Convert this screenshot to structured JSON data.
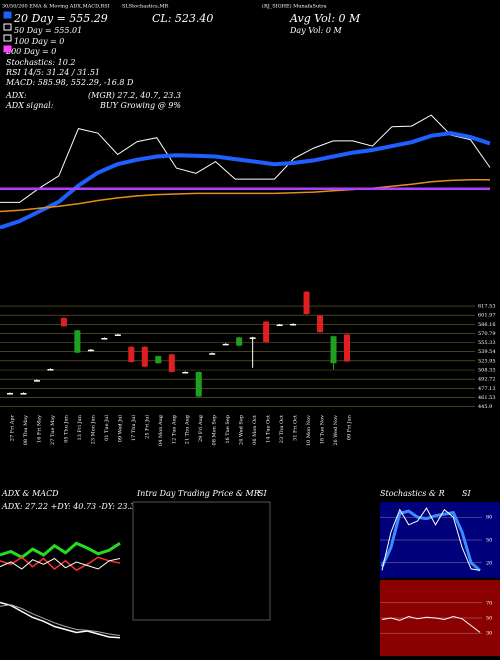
{
  "chart_data": [
    {
      "type": "line",
      "title": "30/50/200  EMA & Moving ADX,MACD,RSI",
      "subtitle": "SLStochastics,MR",
      "source": "(RJ_SIGHE) MunafaSutra",
      "annotations": [
        "20 Day = 555.29",
        "50 Day = 555.01",
        "100 Day = 0",
        "200 Day = 0",
        "Stochastics: 10.2",
        "RSI 14/5: 31.24 / 31.51",
        "MACD: 585.98, 552.29, -16.8 D",
        "ADX:",
        "(MGR) 27.2, 40.7, 23.3",
        "ADX signal:",
        "BUY Growing @ 9%",
        "CL: 523.40",
        "Avg Vol: 0  M",
        "Day Vol: 0  M"
      ],
      "ylim": [
        380,
        720
      ],
      "series": [
        {
          "color": "#ffffff",
          "values": [
            469,
            469,
            491,
            510,
            583,
            576,
            543,
            563,
            569,
            522,
            514,
            532,
            505,
            505,
            505,
            537,
            553,
            564,
            564,
            556,
            586,
            587,
            604,
            573,
            566,
            523
          ]
        },
        {
          "color": "#1f5fff",
          "values": [
            430,
            440,
            455,
            470,
            495,
            515,
            528,
            535,
            540,
            542,
            541,
            540,
            536,
            532,
            528,
            530,
            534,
            540,
            546,
            550,
            556,
            562,
            572,
            576,
            570,
            560
          ]
        },
        {
          "color": "#e0901a",
          "values": [
            455,
            457,
            460,
            463,
            467,
            472,
            476,
            479,
            481,
            482,
            483,
            483,
            483,
            483,
            483,
            484,
            485,
            487,
            489,
            491,
            494,
            497,
            501,
            503,
            504,
            504
          ]
        },
        {
          "color": "#b040ff",
          "values": [
            490,
            490,
            490,
            490,
            490,
            490,
            490,
            490,
            490,
            490,
            490,
            490,
            490,
            490,
            490,
            490,
            490,
            490,
            490,
            490,
            490,
            490,
            490,
            490,
            490,
            490
          ]
        }
      ]
    },
    {
      "type": "candlestick",
      "categories": [
        "27 Fri Apr",
        "08 Thu May",
        "16 Fri May",
        "27 Tue May",
        "05 Thu Jun",
        "13 Fri Jun",
        "23 Mon Jun",
        "01 Tue Jul",
        "09 Wed Jul",
        "17 Thu Jul",
        "25 Fri Jul",
        "04 Mon Aug",
        "12 Tue Aug",
        "21 Thu Aug",
        "29 Fri Aug",
        "08 Mon Sep",
        "16 Tue Sep",
        "24 Wed Sep",
        "06 Mon Oct",
        "14 Tue Oct",
        "23 Thu Oct",
        "31 Fri Oct",
        "10 Mon Nov",
        "18 Tue Nov",
        "26 Wed Nov",
        "09 Fri Jan"
      ],
      "open": [
        469,
        469,
        491,
        510,
        597,
        538,
        543,
        563,
        569,
        548,
        548,
        520,
        535,
        505,
        463,
        537,
        553,
        550,
        564,
        591,
        586,
        587,
        642,
        601,
        520,
        569
      ],
      "high": [
        470,
        470,
        492,
        511,
        599,
        577,
        544,
        564,
        570,
        549,
        549,
        533,
        536,
        506,
        506,
        538,
        554,
        565,
        565,
        592,
        587,
        588,
        643,
        602,
        567,
        570
      ],
      "low": [
        468,
        468,
        490,
        509,
        582,
        537,
        542,
        562,
        568,
        521,
        513,
        519,
        504,
        504,
        462,
        536,
        552,
        549,
        512,
        555,
        585,
        586,
        603,
        572,
        509,
        522
      ],
      "close": [
        469,
        469,
        491,
        510,
        583,
        576,
        543,
        563,
        569,
        522,
        514,
        532,
        505,
        505,
        505,
        537,
        553,
        564,
        564,
        556,
        586,
        587,
        604,
        573,
        566,
        523
      ],
      "ylim": [
        440,
        645
      ],
      "yticks": [
        617.53,
        601.97,
        586.16,
        570.79,
        555.33,
        539.54,
        523.95,
        508.33,
        492.72,
        477.13,
        461.53,
        445.9
      ]
    },
    {
      "type": "line",
      "title": "ADX  & MACD",
      "subtitle": "ADX: 27.22  +DY: 40.73  -DY: 23.3",
      "ylim": [
        0,
        60
      ],
      "series": [
        {
          "color": "#22dd22",
          "values": [
            30,
            33,
            28,
            35,
            30,
            38,
            32,
            40,
            36,
            31,
            34,
            40
          ]
        },
        {
          "color": "#ff3030",
          "values": [
            25,
            22,
            28,
            20,
            27,
            18,
            25,
            17,
            22,
            28,
            25,
            23
          ]
        },
        {
          "color": "#ffffff",
          "values": [
            20,
            24,
            18,
            26,
            22,
            27,
            19,
            24,
            21,
            18,
            25,
            27
          ]
        }
      ]
    },
    {
      "type": "line",
      "title": "MACD",
      "ylim": [
        -40,
        40
      ],
      "series": [
        {
          "color": "#ffffff",
          "values": [
            30,
            26,
            18,
            10,
            5,
            -2,
            -6,
            -10,
            -8,
            -12,
            -16,
            -17
          ]
        },
        {
          "color": "#aaaaaa",
          "values": [
            25,
            27,
            22,
            15,
            9,
            3,
            -2,
            -6,
            -7,
            -9,
            -12,
            -14
          ]
        }
      ]
    },
    {
      "type": "line",
      "title": "Intra  Day Trading Price  & MR",
      "subtitle": "SI",
      "series": []
    },
    {
      "type": "line",
      "title": "Stochastics & R",
      "subtitle": "SI",
      "ylim": [
        0,
        100
      ],
      "yticks": [
        80,
        50,
        20
      ],
      "series": [
        {
          "color": "#3a8cff",
          "values": [
            15,
            40,
            85,
            88,
            80,
            78,
            82,
            84,
            86,
            60,
            20,
            10
          ]
        },
        {
          "color": "#ffffff",
          "values": [
            10,
            60,
            90,
            70,
            75,
            92,
            70,
            90,
            80,
            40,
            12,
            10
          ]
        }
      ]
    },
    {
      "type": "line",
      "title": "RSI",
      "ylim": [
        0,
        100
      ],
      "yticks": [
        70,
        50,
        30
      ],
      "series": [
        {
          "color": "#ffffff",
          "values": [
            48,
            50,
            47,
            52,
            49,
            51,
            50,
            48,
            52,
            49,
            40,
            31
          ]
        }
      ]
    }
  ]
}
